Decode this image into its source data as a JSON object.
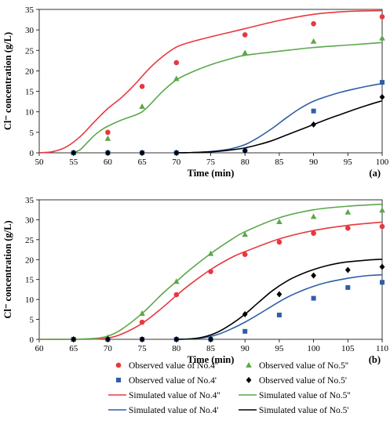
{
  "chart_data": [
    {
      "type": "line",
      "panel_label": "(a)",
      "xlabel": "Time (min)",
      "ylabel": "Cl⁻ concentration (g/L)",
      "xlim": [
        50,
        100
      ],
      "ylim": [
        0,
        35
      ],
      "xticks": [
        50,
        55,
        60,
        65,
        70,
        75,
        80,
        85,
        90,
        95,
        100
      ],
      "yticks": [
        0,
        5,
        10,
        15,
        20,
        25,
        30,
        35
      ],
      "grid": false,
      "series": [
        {
          "name": "Observed value of No.4''",
          "kind": "observed",
          "marker": "circle",
          "color": "#e8383d",
          "x": [
            55,
            60,
            65,
            70,
            80,
            90,
            100
          ],
          "y": [
            0,
            5.0,
            16.2,
            22.0,
            28.8,
            31.5,
            33.2
          ]
        },
        {
          "name": "Observed value of No.5''",
          "kind": "observed",
          "marker": "triangle",
          "color": "#5ba84a",
          "x": [
            55,
            60,
            65,
            70,
            80,
            90,
            100
          ],
          "y": [
            0,
            3.5,
            11.3,
            18.1,
            24.4,
            27.2,
            28.0
          ]
        },
        {
          "name": "Observed value of No.4'",
          "kind": "observed",
          "marker": "square",
          "color": "#2e5fa8",
          "x": [
            55,
            60,
            65,
            70,
            80,
            90,
            100
          ],
          "y": [
            0,
            0,
            0,
            0,
            0.5,
            10.2,
            17.2
          ]
        },
        {
          "name": "Observed value of No.5'",
          "kind": "observed",
          "marker": "diamond",
          "color": "#000000",
          "x": [
            55,
            60,
            65,
            70,
            80,
            90,
            100
          ],
          "y": [
            0,
            0,
            0,
            0,
            0.5,
            6.9,
            13.6
          ]
        },
        {
          "name": "Simulated value of No.4''",
          "kind": "simulated",
          "color": "#e8383d",
          "x": [
            50,
            52,
            54,
            56,
            58,
            60,
            62,
            64,
            66,
            68,
            70,
            72,
            75,
            78,
            80,
            85,
            90,
            95,
            100
          ],
          "y": [
            0,
            0.3,
            1.5,
            4.0,
            7.5,
            10.8,
            13.5,
            16.8,
            20.5,
            23.5,
            25.8,
            27.0,
            28.3,
            29.5,
            30.3,
            32.3,
            33.8,
            34.5,
            34.7
          ]
        },
        {
          "name": "Simulated value of No.5''",
          "kind": "simulated",
          "color": "#5ba84a",
          "x": [
            55,
            56,
            57,
            58,
            59,
            60,
            62,
            64,
            65,
            66,
            68,
            70,
            72,
            75,
            78,
            80,
            85,
            90,
            95,
            100
          ],
          "y": [
            0,
            0.8,
            2.5,
            4.2,
            5.5,
            6.5,
            8.0,
            9.2,
            10.0,
            11.5,
            15.0,
            17.8,
            19.5,
            21.5,
            23.0,
            23.8,
            24.8,
            25.7,
            26.3,
            26.9
          ]
        },
        {
          "name": "Simulated value of No.4'",
          "kind": "simulated",
          "color": "#2e5fa8",
          "x": [
            70,
            72,
            74,
            76,
            78,
            80,
            82,
            84,
            86,
            88,
            90,
            92,
            94,
            96,
            98,
            100
          ],
          "y": [
            0,
            0.05,
            0.2,
            0.5,
            1.0,
            2.0,
            3.8,
            6.0,
            8.5,
            10.8,
            12.6,
            13.8,
            14.8,
            15.6,
            16.3,
            16.9
          ]
        },
        {
          "name": "Simulated value of No.5'",
          "kind": "simulated",
          "color": "#000000",
          "x": [
            70,
            72,
            74,
            76,
            78,
            80,
            82,
            84,
            86,
            88,
            90,
            92,
            94,
            96,
            98,
            100
          ],
          "y": [
            0,
            0.05,
            0.15,
            0.35,
            0.7,
            1.2,
            2.0,
            3.0,
            4.3,
            5.6,
            6.9,
            8.2,
            9.4,
            10.6,
            11.7,
            12.7
          ]
        }
      ]
    },
    {
      "type": "line",
      "panel_label": "(b)",
      "xlabel": "Time (min)",
      "ylabel": "Cl⁻ concentration (g/L)",
      "xlim": [
        60,
        110
      ],
      "ylim": [
        0,
        35
      ],
      "xticks": [
        60,
        65,
        70,
        75,
        80,
        85,
        90,
        95,
        100,
        105,
        110
      ],
      "yticks": [
        0,
        5,
        10,
        15,
        20,
        25,
        30,
        35
      ],
      "grid": false,
      "series": [
        {
          "name": "Observed value of No.4''",
          "kind": "observed",
          "marker": "circle",
          "color": "#e8383d",
          "x": [
            65,
            70,
            75,
            80,
            85,
            90,
            95,
            100,
            105,
            110
          ],
          "y": [
            0,
            0,
            4.3,
            11.2,
            17.0,
            21.3,
            24.4,
            26.6,
            27.9,
            28.3
          ]
        },
        {
          "name": "Observed value of No.5''",
          "kind": "observed",
          "marker": "triangle",
          "color": "#5ba84a",
          "x": [
            65,
            70,
            75,
            80,
            85,
            90,
            95,
            100,
            105,
            110
          ],
          "y": [
            0,
            0.5,
            6.5,
            14.5,
            21.5,
            26.3,
            29.5,
            30.8,
            31.9,
            32.4
          ]
        },
        {
          "name": "Observed value of No.4'",
          "kind": "observed",
          "marker": "square",
          "color": "#2e5fa8",
          "x": [
            65,
            70,
            75,
            80,
            85,
            90,
            95,
            100,
            105,
            110
          ],
          "y": [
            0,
            0,
            0,
            0,
            0,
            2.0,
            6.1,
            10.3,
            13.0,
            14.3
          ]
        },
        {
          "name": "Observed value of No.5'",
          "kind": "observed",
          "marker": "diamond",
          "color": "#000000",
          "x": [
            65,
            70,
            75,
            80,
            85,
            90,
            95,
            100,
            105,
            110
          ],
          "y": [
            0,
            0,
            0,
            0,
            0,
            6.3,
            11.3,
            16.0,
            17.4,
            18.2
          ]
        },
        {
          "name": "Simulated value of No.4''",
          "kind": "simulated",
          "color": "#e8383d",
          "x": [
            60,
            65,
            68,
            70,
            72,
            75,
            78,
            80,
            82,
            85,
            88,
            90,
            95,
            100,
            105,
            110
          ],
          "y": [
            0,
            0,
            0.05,
            0.3,
            1.3,
            4.0,
            8.0,
            11.0,
            13.8,
            17.5,
            20.5,
            22.0,
            25.2,
            27.3,
            28.6,
            29.4
          ]
        },
        {
          "name": "Simulated value of No.5''",
          "kind": "simulated",
          "color": "#5ba84a",
          "x": [
            60,
            65,
            68,
            70,
            72,
            75,
            78,
            80,
            82,
            85,
            88,
            90,
            95,
            100,
            105,
            110
          ],
          "y": [
            0,
            0.02,
            0.2,
            0.8,
            2.5,
            6.5,
            11.5,
            14.5,
            17.5,
            21.5,
            25.0,
            27.0,
            30.5,
            32.5,
            33.4,
            33.9
          ]
        },
        {
          "name": "Simulated value of No.4'",
          "kind": "simulated",
          "color": "#2e5fa8",
          "x": [
            80,
            82,
            84,
            86,
            88,
            90,
            92,
            94,
            96,
            98,
            100,
            102,
            104,
            106,
            108,
            110
          ],
          "y": [
            0,
            0.1,
            0.4,
            1.2,
            2.6,
            4.3,
            6.3,
            8.4,
            10.4,
            12.0,
            13.3,
            14.3,
            15.0,
            15.6,
            16.0,
            16.2
          ]
        },
        {
          "name": "Simulated value of No.5'",
          "kind": "simulated",
          "color": "#000000",
          "x": [
            80,
            82,
            84,
            86,
            88,
            90,
            92,
            94,
            96,
            98,
            100,
            102,
            104,
            106,
            108,
            110
          ],
          "y": [
            0,
            0.1,
            0.6,
            1.8,
            3.8,
            6.3,
            9.3,
            12.2,
            14.5,
            16.2,
            17.5,
            18.5,
            19.2,
            19.6,
            19.9,
            20.1
          ]
        }
      ]
    }
  ],
  "legend": {
    "placement": "bottom",
    "items": [
      {
        "label": "Observed value of No.4''",
        "type": "marker",
        "shape": "circle",
        "color": "#e8383d"
      },
      {
        "label": "Observed value of No.5''",
        "type": "marker",
        "shape": "triangle",
        "color": "#5ba84a"
      },
      {
        "label": "Observed value of No.4'",
        "type": "marker",
        "shape": "square",
        "color": "#2e5fa8"
      },
      {
        "label": "Observed value of No.5'",
        "type": "marker",
        "shape": "diamond",
        "color": "#000000"
      },
      {
        "label": "Simulated value of No.4''",
        "type": "line",
        "color": "#e8383d"
      },
      {
        "label": "Simulated value of No.5''",
        "type": "line",
        "color": "#5ba84a"
      },
      {
        "label": "Simulated value of No.4'",
        "type": "line",
        "color": "#2e5fa8"
      },
      {
        "label": "Simulated value of No.5'",
        "type": "line",
        "color": "#000000"
      }
    ]
  }
}
